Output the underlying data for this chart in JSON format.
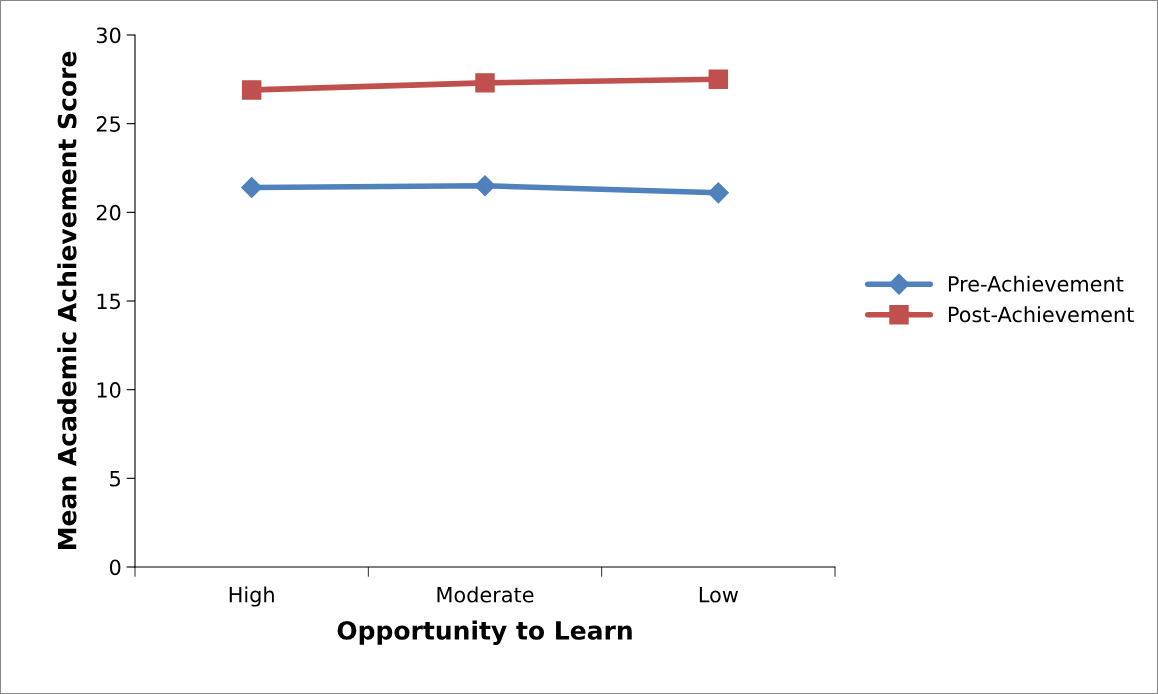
{
  "chart_data": {
    "type": "line",
    "xlabel": "Opportunity to Learn",
    "ylabel": "Mean Academic Achievement Score",
    "categories": [
      "High",
      "Moderate",
      "Low"
    ],
    "series": [
      {
        "name": "Pre-Achievement",
        "color": "#4f81bd",
        "marker": "diamond",
        "values": [
          21.4,
          21.5,
          21.1
        ]
      },
      {
        "name": "Post-Achievement",
        "color": "#c0504d",
        "marker": "square",
        "values": [
          26.9,
          27.3,
          27.5
        ]
      }
    ],
    "ylim": [
      0,
      30
    ],
    "yticks": [
      0,
      5,
      10,
      15,
      20,
      25,
      30
    ],
    "grid": false,
    "legend": "right",
    "line_style": "solid"
  }
}
